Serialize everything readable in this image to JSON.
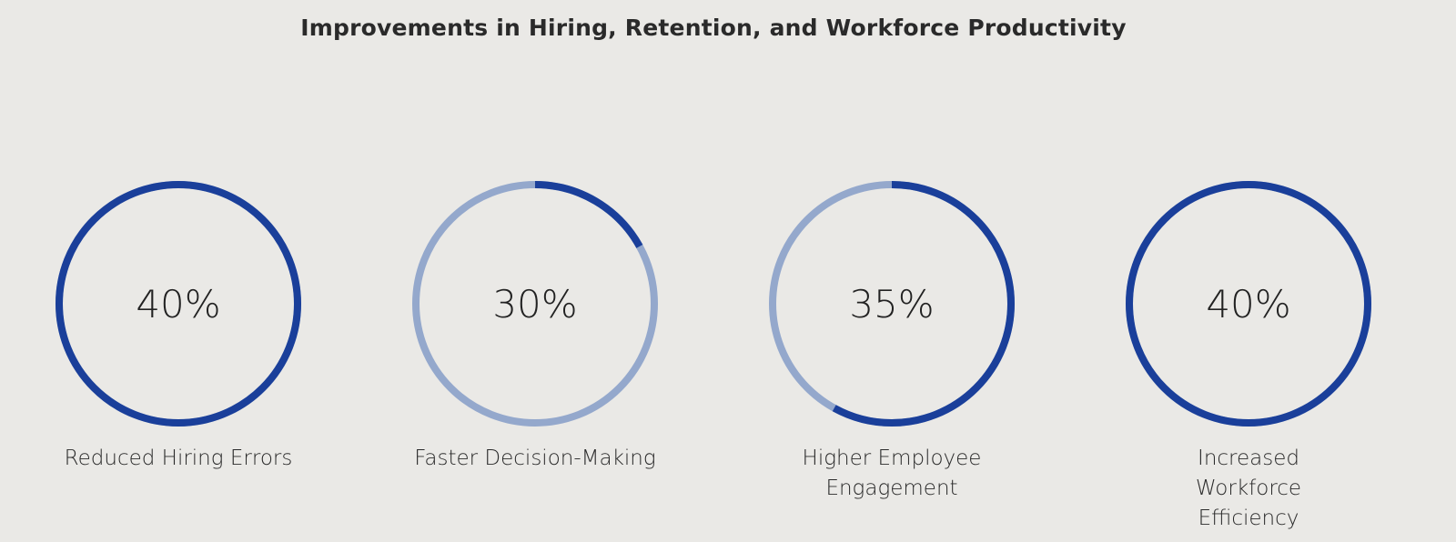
{
  "title": "Improvements in Hiring, Retention, and Workforce Productivity",
  "colors": {
    "ring_fill": "#1a3f9a",
    "ring_track": "#94a8cc",
    "background": "#eae9e6"
  },
  "chart_data": {
    "type": "radial-progress",
    "title": "Improvements in Hiring, Retention, and Workforce Productivity",
    "items": [
      {
        "value_label": "40%",
        "label": "Reduced Hiring Errors",
        "ring_fill_fraction": 1.0
      },
      {
        "value_label": "30%",
        "label": "Faster Decision-Making",
        "ring_fill_fraction": 0.17
      },
      {
        "value_label": "35%",
        "label": "Higher Employee Engagement",
        "ring_fill_fraction": 0.58
      },
      {
        "value_label": "40%",
        "label": "Increased Workforce Efficiency",
        "ring_fill_fraction": 1.0
      }
    ]
  }
}
